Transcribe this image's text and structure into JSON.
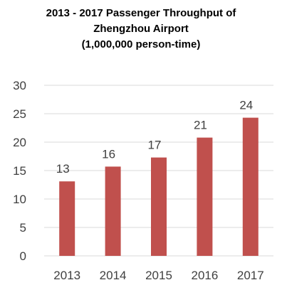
{
  "chart_data": {
    "type": "bar",
    "title_lines": [
      "2013 - 2017 Passenger Throughput of",
      "Zhengzhou Airport",
      "(1,000,000 person-time)"
    ],
    "categories": [
      "2013",
      "2014",
      "2015",
      "2016",
      "2017"
    ],
    "values": [
      13.1,
      15.7,
      17.3,
      20.8,
      24.3
    ],
    "data_labels": [
      "13",
      "16",
      "17",
      "21",
      "24"
    ],
    "ylim": [
      0,
      30
    ],
    "yticks": [
      "0",
      "5",
      "10",
      "15",
      "20",
      "25",
      "30"
    ],
    "bar_color": "#c0504d",
    "grid": true,
    "legend": "none"
  }
}
